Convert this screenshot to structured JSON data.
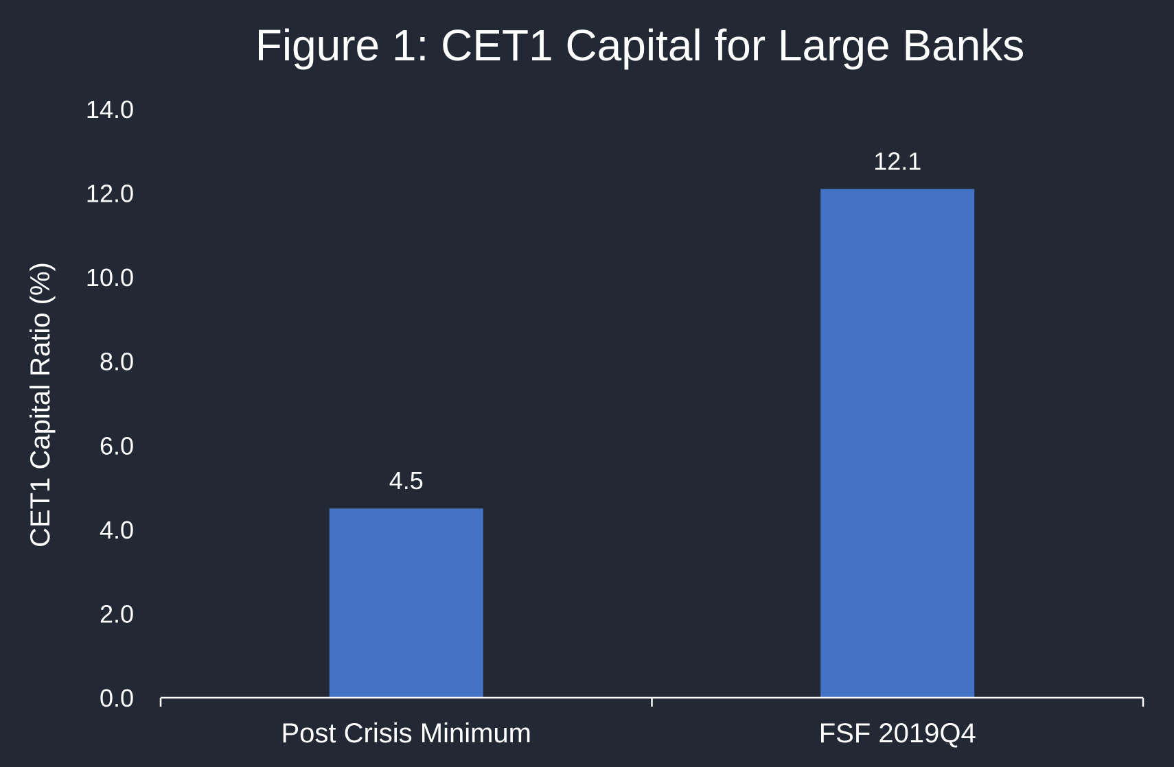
{
  "chart_data": {
    "type": "bar",
    "title": "Figure 1: CET1 Capital for Large Banks",
    "xlabel": "",
    "ylabel": "CET1 Capital Ratio (%)",
    "ylim": [
      0,
      14
    ],
    "y_ticks": [
      "0.0",
      "2.0",
      "4.0",
      "6.0",
      "8.0",
      "10.0",
      "12.0",
      "14.0"
    ],
    "categories": [
      "Post Crisis Minimum",
      "FSF 2019Q4"
    ],
    "values": [
      4.5,
      12.1
    ],
    "data_labels": [
      "4.5",
      "12.1"
    ],
    "grid": false,
    "legend": "none",
    "colors": {
      "background": "#222935",
      "bar": "#4472C4",
      "text": "#ffffff",
      "axis": "#ffffff"
    }
  }
}
